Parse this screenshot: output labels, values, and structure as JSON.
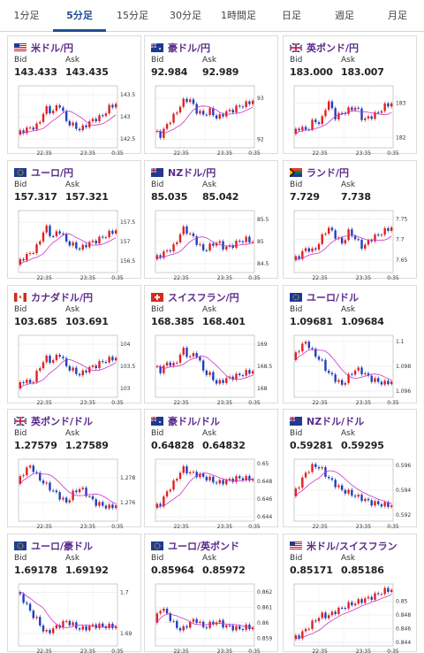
{
  "tabs": [
    {
      "label": "1分足",
      "active": false
    },
    {
      "label": "5分足",
      "active": true
    },
    {
      "label": "15分足",
      "active": false
    },
    {
      "label": "30分足",
      "active": false
    },
    {
      "label": "1時間足",
      "active": false
    },
    {
      "label": "日足",
      "active": false
    },
    {
      "label": "週足",
      "active": false
    },
    {
      "label": "月足",
      "active": false
    }
  ],
  "colors": {
    "up": "#e02020",
    "down": "#1f3fbf",
    "ma": "#cc33cc",
    "pair_text": "#5a2a8c",
    "active_tab": "#1f4e96"
  },
  "labels": {
    "bid": "Bid",
    "ask": "Ask"
  },
  "cards": [
    {
      "pair": "米ドル/円",
      "flag": "us-flag",
      "bid": "143.433",
      "ask": "143.435",
      "chart_data": {
        "type": "candlestick",
        "x_ticks": [
          "22:35",
          "23:35",
          "0:35"
        ],
        "y_ticks": [
          "143.5",
          "143",
          "142.5"
        ],
        "ylim": [
          142.3,
          143.7
        ],
        "series": [
          142.6,
          142.7,
          142.75,
          142.8,
          143.2,
          143.1,
          143.3,
          142.9,
          142.8,
          142.7,
          142.85,
          142.95,
          143.0,
          143.2,
          143.3
        ]
      }
    },
    {
      "pair": "豪ドル/円",
      "flag": "au-flag",
      "bid": "92.984",
      "ask": "92.989",
      "chart_data": {
        "type": "candlestick",
        "x_ticks": [
          "22:35",
          "23:35",
          "0:35"
        ],
        "y_ticks": [
          "93",
          "92"
        ],
        "ylim": [
          91.8,
          93.3
        ],
        "series": [
          92.2,
          92.1,
          92.4,
          92.6,
          92.9,
          93.0,
          92.7,
          92.6,
          92.7,
          92.5,
          92.65,
          92.7,
          92.8,
          92.85,
          92.95
        ]
      }
    },
    {
      "pair": "英ポンド/円",
      "flag": "gb-flag",
      "bid": "183.000",
      "ask": "183.007",
      "chart_data": {
        "type": "candlestick",
        "x_ticks": [
          "22:35",
          "23:35",
          "0:35"
        ],
        "y_ticks": [
          "183",
          "182"
        ],
        "ylim": [
          181.7,
          183.5
        ],
        "series": [
          182.1,
          182.3,
          182.2,
          182.5,
          182.4,
          183.1,
          182.6,
          182.7,
          182.8,
          182.9,
          182.5,
          182.6,
          182.7,
          182.9,
          183.0
        ]
      }
    },
    {
      "pair": "ユーロ/円",
      "flag": "eu-flag",
      "bid": "157.317",
      "ask": "157.321",
      "chart_data": {
        "type": "candlestick",
        "x_ticks": [
          "22:35",
          "23:35",
          "0:35"
        ],
        "y_ticks": [
          "157.5",
          "157",
          "156.5"
        ],
        "ylim": [
          156.2,
          157.8
        ],
        "series": [
          156.4,
          156.6,
          156.7,
          156.9,
          157.4,
          157.1,
          157.3,
          157.0,
          156.9,
          156.8,
          156.95,
          157.0,
          157.1,
          157.2,
          157.3
        ]
      }
    },
    {
      "pair": "NZドル/円",
      "flag": "nz-flag",
      "bid": "85.035",
      "ask": "85.042",
      "chart_data": {
        "type": "candlestick",
        "x_ticks": [
          "22:35",
          "23:35",
          "0:35"
        ],
        "y_ticks": [
          "85.5",
          "85",
          "84.5"
        ],
        "ylim": [
          84.3,
          85.7
        ],
        "series": [
          84.6,
          84.7,
          84.8,
          84.9,
          85.3,
          85.2,
          85.0,
          84.8,
          84.9,
          85.0,
          84.85,
          84.9,
          85.0,
          85.05,
          85.0
        ]
      }
    },
    {
      "pair": "ランド/円",
      "flag": "za-flag",
      "bid": "7.729",
      "ask": "7.738",
      "chart_data": {
        "type": "candlestick",
        "x_ticks": [
          "22:35",
          "23:35",
          "0:35"
        ],
        "y_ticks": [
          "7.75",
          "7.7",
          "7.65"
        ],
        "ylim": [
          7.62,
          7.77
        ],
        "series": [
          7.65,
          7.66,
          7.68,
          7.67,
          7.7,
          7.73,
          7.71,
          7.69,
          7.72,
          7.7,
          7.68,
          7.7,
          7.71,
          7.72,
          7.73
        ]
      }
    },
    {
      "pair": "カナダドル/円",
      "flag": "ca-flag",
      "bid": "103.685",
      "ask": "103.691",
      "chart_data": {
        "type": "candlestick",
        "x_ticks": [
          "22:35",
          "23:35",
          "0:35"
        ],
        "y_ticks": [
          "104",
          "103.5",
          "103"
        ],
        "ylim": [
          102.8,
          104.2
        ],
        "series": [
          103.0,
          103.2,
          103.1,
          103.4,
          103.7,
          103.6,
          103.8,
          103.5,
          103.4,
          103.3,
          103.45,
          103.5,
          103.6,
          103.65,
          103.7
        ]
      }
    },
    {
      "pair": "スイスフラン/円",
      "flag": "ch-flag",
      "bid": "168.385",
      "ask": "168.401",
      "chart_data": {
        "type": "candlestick",
        "x_ticks": [
          "22:35",
          "23:35",
          "0:35"
        ],
        "y_ticks": [
          "169",
          "168.5",
          "168"
        ],
        "ylim": [
          167.8,
          169.2
        ],
        "series": [
          168.5,
          168.4,
          168.6,
          168.5,
          168.9,
          168.7,
          168.8,
          168.4,
          168.3,
          168.1,
          168.2,
          168.25,
          168.3,
          168.35,
          168.4
        ]
      }
    },
    {
      "pair": "ユーロ/ドル",
      "flag": "eu-flag",
      "bid": "1.09681",
      "ask": "1.09684",
      "chart_data": {
        "type": "candlestick",
        "x_ticks": [
          "22:35",
          "23:35",
          "0:35"
        ],
        "y_ticks": [
          "1.1",
          "1.098",
          "1.096"
        ],
        "ylim": [
          1.0955,
          1.1005
        ],
        "series": [
          1.0985,
          1.0995,
          1.1,
          1.099,
          1.0985,
          1.0975,
          1.097,
          1.0965,
          1.0972,
          1.0978,
          1.0975,
          1.097,
          1.0968,
          1.0966,
          1.0968
        ]
      }
    },
    {
      "pair": "英ポンド/ドル",
      "flag": "gb-flag",
      "bid": "1.27579",
      "ask": "1.27589",
      "chart_data": {
        "type": "candlestick",
        "x_ticks": [
          "22:35",
          "23:35",
          "0:35"
        ],
        "y_ticks": [
          "1.278",
          "1.276"
        ],
        "ylim": [
          1.2745,
          1.2795
        ],
        "series": [
          1.2775,
          1.2785,
          1.279,
          1.278,
          1.2775,
          1.277,
          1.2765,
          1.276,
          1.2768,
          1.2772,
          1.2766,
          1.276,
          1.2758,
          1.2756,
          1.2758
        ]
      }
    },
    {
      "pair": "豪ドル/ドル",
      "flag": "au-flag",
      "bid": "0.64828",
      "ask": "0.64832",
      "chart_data": {
        "type": "candlestick",
        "x_ticks": [
          "22:35",
          "23:35",
          "0:35"
        ],
        "y_ticks": [
          "0.65",
          "0.648",
          "0.646",
          "0.644"
        ],
        "ylim": [
          0.6435,
          0.6505
        ],
        "series": [
          0.645,
          0.6455,
          0.647,
          0.648,
          0.6495,
          0.649,
          0.6488,
          0.6485,
          0.6482,
          0.6478,
          0.648,
          0.6482,
          0.6484,
          0.6483,
          0.6483
        ]
      }
    },
    {
      "pair": "NZドル/ドル",
      "flag": "nz-flag",
      "bid": "0.59281",
      "ask": "0.59295",
      "chart_data": {
        "type": "candlestick",
        "x_ticks": [
          "22:35",
          "23:35",
          "0:35"
        ],
        "y_ticks": [
          "0.596",
          "0.594",
          "0.592"
        ],
        "ylim": [
          0.5915,
          0.5965
        ],
        "series": [
          0.5935,
          0.5945,
          0.5955,
          0.596,
          0.5958,
          0.595,
          0.5945,
          0.594,
          0.5938,
          0.5935,
          0.5933,
          0.593,
          0.5929,
          0.5928,
          0.5928
        ]
      }
    },
    {
      "pair": "ユーロ/豪ドル",
      "flag": "eu-flag",
      "bid": "1.69178",
      "ask": "1.69192",
      "chart_data": {
        "type": "candlestick",
        "x_ticks": [
          "22:35",
          "23:35",
          "0:35"
        ],
        "y_ticks": [
          "1.7",
          "1.69"
        ],
        "ylim": [
          1.687,
          1.702
        ],
        "series": [
          1.7,
          1.698,
          1.695,
          1.693,
          1.69,
          1.691,
          1.692,
          1.693,
          1.692,
          1.691,
          1.6915,
          1.692,
          1.6918,
          1.6917,
          1.6918
        ]
      }
    },
    {
      "pair": "ユーロ/英ポンド",
      "flag": "eu-flag",
      "bid": "0.85964",
      "ask": "0.85972",
      "chart_data": {
        "type": "candlestick",
        "x_ticks": [
          "22:35",
          "23:35",
          "0:35"
        ],
        "y_ticks": [
          "0.862",
          "0.861",
          "0.86",
          "0.859"
        ],
        "ylim": [
          0.8585,
          0.8625
        ],
        "series": [
          0.86,
          0.861,
          0.8605,
          0.8598,
          0.8595,
          0.86,
          0.8602,
          0.8597,
          0.8599,
          0.8601,
          0.8598,
          0.8597,
          0.8596,
          0.8597,
          0.8597
        ]
      }
    },
    {
      "pair": "米ドル/スイスフラン",
      "flag": "us-flag",
      "bid": "0.85171",
      "ask": "0.85186",
      "chart_data": {
        "type": "candlestick",
        "x_ticks": [
          "22:35",
          "23:35",
          "0:35"
        ],
        "y_ticks": [
          "0.85",
          "0.848",
          "0.846",
          "0.844"
        ],
        "ylim": [
          0.8435,
          0.8525
        ],
        "series": [
          0.8445,
          0.845,
          0.846,
          0.847,
          0.848,
          0.8478,
          0.8485,
          0.849,
          0.8495,
          0.8498,
          0.8502,
          0.8505,
          0.851,
          0.8515,
          0.8517
        ]
      }
    }
  ]
}
